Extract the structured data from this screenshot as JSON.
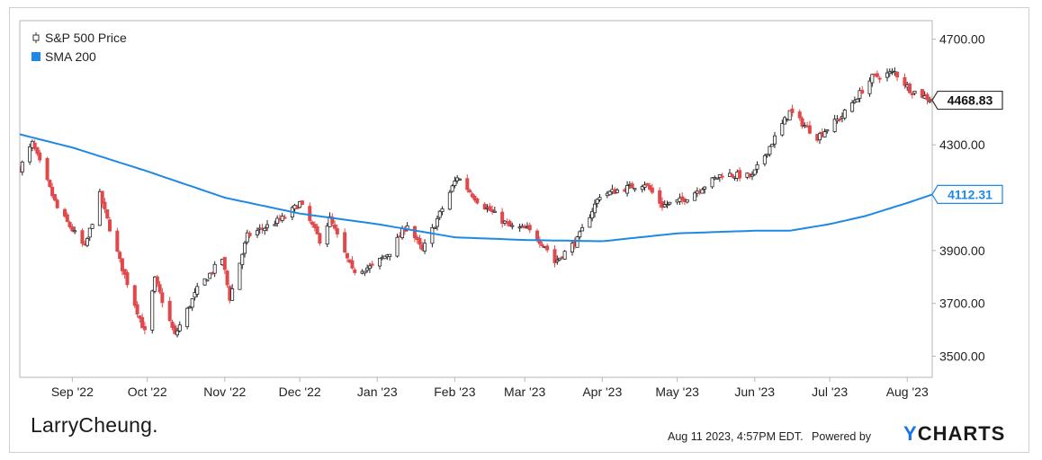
{
  "chart_data": {
    "type": "candlestick",
    "legend": {
      "placement": "top-left",
      "items": [
        {
          "name": "S&P 500 Price",
          "marker": "candlestick-icon",
          "color": "#333333"
        },
        {
          "name": "SMA 200",
          "marker": "square",
          "color": "#1e88e5"
        }
      ]
    },
    "ylim": [
      3420,
      4770
    ],
    "y_ticks": [
      "4700.00",
      "4300.00",
      "3900.00",
      "3700.00",
      "3500.00"
    ],
    "y_tick_values": [
      4700,
      4300,
      3900,
      3700,
      3500
    ],
    "x_tick_labels": [
      "Sep '22",
      "Oct '22",
      "Nov '22",
      "Dec '22",
      "Jan '23",
      "Feb '23",
      "Mar '23",
      "Apr '23",
      "May '23",
      "Jun '23",
      "Jul '23",
      "Aug '23"
    ],
    "x_tick_dates": [
      "2022-09-01",
      "2022-10-01",
      "2022-11-01",
      "2022-12-01",
      "2023-01-01",
      "2023-02-01",
      "2023-03-01",
      "2023-04-01",
      "2023-05-01",
      "2023-06-01",
      "2023-07-01",
      "2023-08-01"
    ],
    "x_range": [
      "2022-08-11",
      "2023-08-11"
    ],
    "price_close_path": [
      [
        "2022-08-11",
        4210
      ],
      [
        "2022-08-16",
        4305
      ],
      [
        "2022-08-26",
        4060
      ],
      [
        "2022-09-06",
        3910
      ],
      [
        "2022-09-12",
        4110
      ],
      [
        "2022-09-20",
        3860
      ],
      [
        "2022-09-30",
        3590
      ],
      [
        "2022-10-04",
        3790
      ],
      [
        "2022-10-12",
        3578
      ],
      [
        "2022-10-21",
        3752
      ],
      [
        "2022-10-31",
        3870
      ],
      [
        "2022-11-03",
        3720
      ],
      [
        "2022-11-10",
        3955
      ],
      [
        "2022-11-25",
        4025
      ],
      [
        "2022-12-01",
        4080
      ],
      [
        "2022-12-09",
        3940
      ],
      [
        "2022-12-13",
        4020
      ],
      [
        "2022-12-22",
        3822
      ],
      [
        "2022-12-30",
        3839
      ],
      [
        "2023-01-06",
        3895
      ],
      [
        "2023-01-13",
        4000
      ],
      [
        "2023-01-19",
        3898
      ],
      [
        "2023-02-02",
        4180
      ],
      [
        "2023-02-10",
        4090
      ],
      [
        "2023-02-23",
        3990
      ],
      [
        "2023-03-02",
        3980
      ],
      [
        "2023-03-09",
        3920
      ],
      [
        "2023-03-13",
        3855
      ],
      [
        "2023-03-22",
        3940
      ],
      [
        "2023-03-31",
        4110
      ],
      [
        "2023-04-18",
        4155
      ],
      [
        "2023-04-25",
        4070
      ],
      [
        "2023-05-03",
        4090
      ],
      [
        "2023-05-19",
        4190
      ],
      [
        "2023-05-31",
        4180
      ],
      [
        "2023-06-15",
        4425
      ],
      [
        "2023-06-26",
        4330
      ],
      [
        "2023-07-06",
        4410
      ],
      [
        "2023-07-18",
        4555
      ],
      [
        "2023-07-27",
        4575
      ],
      [
        "2023-08-02",
        4510
      ],
      [
        "2023-08-11",
        4468.83
      ]
    ],
    "sma_path": [
      [
        "2022-08-11",
        4340
      ],
      [
        "2022-09-01",
        4290
      ],
      [
        "2022-10-01",
        4200
      ],
      [
        "2022-11-01",
        4100
      ],
      [
        "2022-12-01",
        4040
      ],
      [
        "2023-01-01",
        4000
      ],
      [
        "2023-02-01",
        3950
      ],
      [
        "2023-03-01",
        3940
      ],
      [
        "2023-04-01",
        3935
      ],
      [
        "2023-05-01",
        3965
      ],
      [
        "2023-06-01",
        3975
      ],
      [
        "2023-06-15",
        3975
      ],
      [
        "2023-07-01",
        4000
      ],
      [
        "2023-07-15",
        4030
      ],
      [
        "2023-08-01",
        4080
      ],
      [
        "2023-08-11",
        4112.31
      ]
    ],
    "last_price": {
      "label": "4468.83",
      "value": 4468.83
    },
    "last_sma": {
      "label": "4112.31",
      "value": 4112.31
    },
    "colors": {
      "up": "#222222",
      "down": "#e0484b",
      "sma": "#1e88e5",
      "plot_border": "#b5b5b5"
    }
  },
  "branding": {
    "name": "LarryCheung."
  },
  "footer": {
    "timestamp": "Aug 11 2023, 4:57PM EDT.",
    "powered_by": "Powered by",
    "provider_y": "Y",
    "provider_rest": "CHARTS"
  }
}
